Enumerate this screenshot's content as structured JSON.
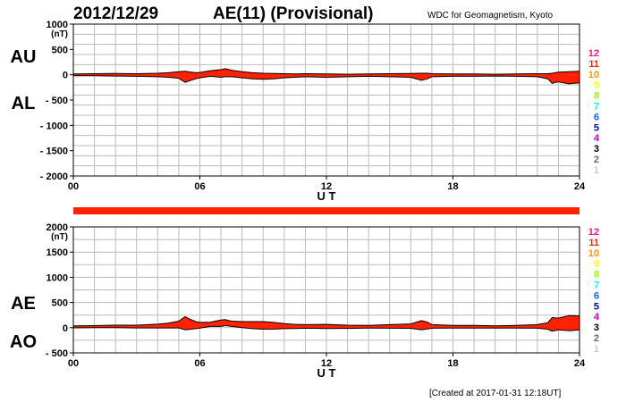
{
  "header": {
    "date": "2012/12/29",
    "index_title": "AE(11) (Provisional)",
    "credit": "WDC for Geomagnetism, Kyoto"
  },
  "footer": {
    "created": "[Created at 2017-01-31 12:18UT]"
  },
  "colors": {
    "fill": "#ff2200",
    "grid": "#bbbbbb",
    "bar": "#ff2200"
  },
  "station_counts": [
    {
      "label": "12",
      "color": "#ff1493"
    },
    {
      "label": "11",
      "color": "#ff2200"
    },
    {
      "label": "10",
      "color": "#ff9900"
    },
    {
      "label": "9",
      "color": "#ffff00"
    },
    {
      "label": "8",
      "color": "#99ff00"
    },
    {
      "label": "7",
      "color": "#00ffff"
    },
    {
      "label": "6",
      "color": "#0066ff"
    },
    {
      "label": "5",
      "color": "#0000aa"
    },
    {
      "label": "4",
      "color": "#cc00cc"
    },
    {
      "label": "3",
      "color": "#000000"
    },
    {
      "label": "2",
      "color": "#666666"
    },
    {
      "label": "1",
      "color": "#cccccc"
    }
  ],
  "chart_data": [
    {
      "type": "area",
      "panel": "AU/AL",
      "labels": [
        "AU",
        "AL"
      ],
      "ylabel_unit": "(nT)",
      "xlabel": "U T",
      "ylim": [
        -2000,
        1000
      ],
      "yticks": [
        "1000",
        "500",
        "0",
        "- 500",
        "- 1000",
        "- 1500",
        "- 2000"
      ],
      "ytick_values": [
        1000,
        500,
        0,
        -500,
        -1000,
        -1500,
        -2000
      ],
      "xlim": [
        0,
        24
      ],
      "xticks": [
        "00",
        "06",
        "12",
        "18",
        "24"
      ],
      "xtick_values": [
        0,
        6,
        12,
        18,
        24
      ],
      "grid": true,
      "x": [
        0,
        1,
        2,
        3,
        4,
        4.5,
        5,
        5.3,
        5.5,
        5.8,
        6,
        6.5,
        7,
        7.2,
        7.5,
        8,
        8.5,
        9,
        9.5,
        10,
        10.5,
        11,
        12,
        13,
        14,
        15,
        16,
        16.5,
        16.8,
        17,
        18,
        19,
        20,
        21,
        22,
        22.5,
        22.7,
        23,
        23.5,
        24
      ],
      "series": [
        {
          "name": "AU",
          "values": [
            15,
            20,
            25,
            20,
            30,
            40,
            60,
            70,
            55,
            40,
            45,
            80,
            100,
            120,
            90,
            60,
            40,
            30,
            25,
            20,
            15,
            20,
            15,
            10,
            15,
            20,
            25,
            30,
            30,
            20,
            15,
            15,
            10,
            15,
            20,
            20,
            30,
            50,
            60,
            70
          ]
        },
        {
          "name": "AL",
          "values": [
            -20,
            -20,
            -25,
            -30,
            -40,
            -50,
            -70,
            -150,
            -120,
            -80,
            -60,
            -30,
            -50,
            -40,
            -40,
            -60,
            -80,
            -90,
            -80,
            -60,
            -50,
            -40,
            -50,
            -40,
            -30,
            -40,
            -50,
            -110,
            -80,
            -40,
            -30,
            -30,
            -25,
            -30,
            -40,
            -80,
            -170,
            -140,
            -180,
            -160
          ]
        }
      ]
    },
    {
      "type": "area",
      "panel": "AE/AO",
      "labels": [
        "AE",
        "AO"
      ],
      "ylabel_unit": "(nT)",
      "xlabel": "U T",
      "ylim": [
        -500,
        2000
      ],
      "yticks": [
        "2000",
        "1500",
        "1000",
        "500",
        "0",
        "- 500"
      ],
      "ytick_values": [
        2000,
        1500,
        1000,
        500,
        0,
        -500
      ],
      "xlim": [
        0,
        24
      ],
      "xticks": [
        "00",
        "06",
        "12",
        "18",
        "24"
      ],
      "xtick_values": [
        0,
        6,
        12,
        18,
        24
      ],
      "grid": true,
      "x": [
        0,
        1,
        2,
        3,
        4,
        4.5,
        5,
        5.3,
        5.5,
        5.8,
        6,
        6.5,
        7,
        7.2,
        7.5,
        8,
        8.5,
        9,
        9.5,
        10,
        10.5,
        11,
        12,
        13,
        14,
        15,
        16,
        16.5,
        16.8,
        17,
        18,
        19,
        20,
        21,
        22,
        22.5,
        22.7,
        23,
        23.5,
        24
      ],
      "series": [
        {
          "name": "AE",
          "values": [
            35,
            40,
            50,
            50,
            70,
            90,
            130,
            220,
            175,
            120,
            105,
            110,
            150,
            160,
            130,
            120,
            120,
            120,
            105,
            80,
            65,
            60,
            65,
            50,
            45,
            60,
            75,
            140,
            110,
            60,
            45,
            45,
            35,
            45,
            60,
            100,
            200,
            190,
            240,
            230
          ]
        },
        {
          "name": "AO",
          "values": [
            -3,
            0,
            0,
            -5,
            -5,
            -5,
            -5,
            -40,
            -33,
            -20,
            -8,
            25,
            25,
            40,
            25,
            0,
            -20,
            -30,
            -28,
            -20,
            -18,
            -10,
            -18,
            -15,
            -8,
            -10,
            -13,
            -40,
            -25,
            -10,
            -8,
            -8,
            -8,
            -8,
            -10,
            -30,
            -70,
            -45,
            -60,
            -45
          ]
        }
      ]
    }
  ]
}
